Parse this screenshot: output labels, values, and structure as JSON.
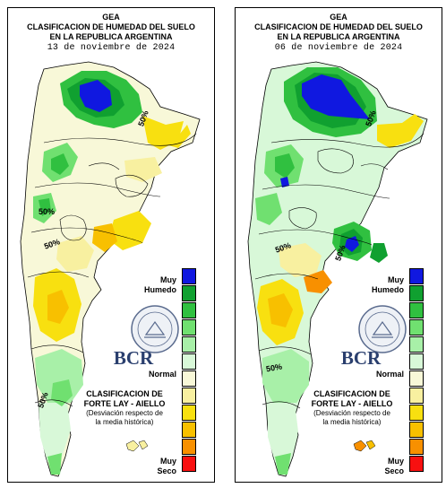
{
  "panels": [
    {
      "org": "GEA",
      "title_line1": "CLASIFICACION DE HUMEDAD DEL SUELO",
      "title_line2": "EN LA REPUBLICA ARGENTINA",
      "date": "13 de noviembre de 2024",
      "labels_pct": [
        "50%",
        "50%",
        "50%",
        "50%"
      ],
      "legend": {
        "top": "Muy\nHumedo",
        "middle": "Normal",
        "bottom": "Muy\nSeco"
      },
      "logo_text": "BCR",
      "classification_title_1": "CLASIFICACION DE",
      "classification_title_2": "FORTE LAY - AIELLO",
      "classification_sub_1": "(Desviación respecto de",
      "classification_sub_2": "la media histórica)"
    },
    {
      "org": "GEA",
      "title_line1": "CLASIFICACION DE HUMEDAD DEL SUELO",
      "title_line2": "EN LA REPUBLICA ARGENTINA",
      "date": "06 de noviembre de 2024",
      "labels_pct": [
        "50%",
        "50%",
        "50%",
        "50%"
      ],
      "legend": {
        "top": "Muy\nHumedo",
        "middle": "Normal",
        "bottom": "Muy\nSeco"
      },
      "logo_text": "BCR",
      "classification_title_1": "CLASIFICACION DE",
      "classification_title_2": "FORTE LAY - AIELLO",
      "classification_sub_1": "(Desviación respecto de",
      "classification_sub_2": "la media histórica)"
    }
  ],
  "legend_colors": [
    "#1018e0",
    "#10a030",
    "#30c040",
    "#70e070",
    "#a8f0a8",
    "#d8f8d8",
    "#f8f8d8",
    "#f8f0a0",
    "#f8e010",
    "#f8c000",
    "#f89000",
    "#f81010"
  ]
}
